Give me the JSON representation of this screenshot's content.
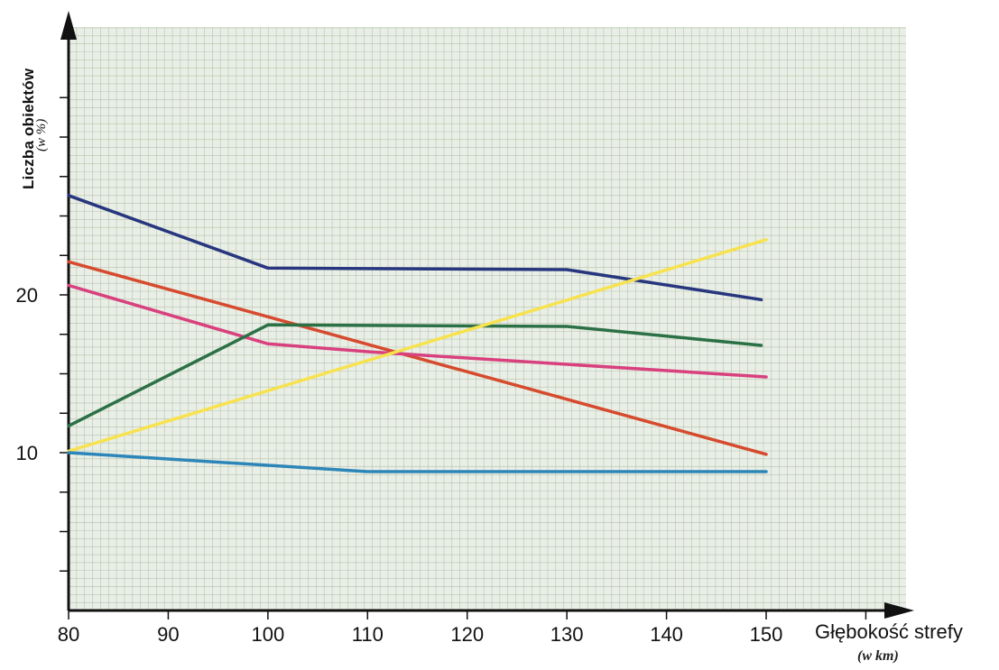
{
  "chart_data": {
    "type": "line",
    "xlabel": "Głębokość strefy",
    "xlabel_unit": "(w km)",
    "ylabel": "Liczba obiektów",
    "ylabel_unit": "(w %)",
    "xlim": [
      80,
      150
    ],
    "ylim": [
      0,
      30
    ],
    "x_ticks": [
      "80",
      "90",
      "100",
      "110",
      "120",
      "130",
      "140",
      "150"
    ],
    "y_ticks": [
      "10",
      "20"
    ],
    "grid": true,
    "legend": "none",
    "series": [
      {
        "color": "#27367e",
        "points": [
          [
            80,
            26.3
          ],
          [
            100,
            21.7
          ],
          [
            130,
            21.6
          ],
          [
            149.5,
            19.7
          ]
        ]
      },
      {
        "color": "#d64a2e",
        "points": [
          [
            80,
            22.1
          ],
          [
            150,
            9.9
          ]
        ]
      },
      {
        "color": "#d8407e",
        "points": [
          [
            80,
            20.6
          ],
          [
            100,
            16.9
          ],
          [
            110,
            16.4
          ],
          [
            150,
            14.8
          ]
        ]
      },
      {
        "color": "#2c7046",
        "points": [
          [
            80,
            11.7
          ],
          [
            100,
            18.1
          ],
          [
            130,
            18.0
          ],
          [
            149.5,
            16.8
          ]
        ]
      },
      {
        "color": "#f7e24f",
        "points": [
          [
            80,
            10.1
          ],
          [
            150,
            23.5
          ]
        ]
      },
      {
        "color": "#2d86b8",
        "points": [
          [
            80,
            10.0
          ],
          [
            110,
            8.8
          ],
          [
            150,
            8.8
          ]
        ]
      }
    ]
  }
}
